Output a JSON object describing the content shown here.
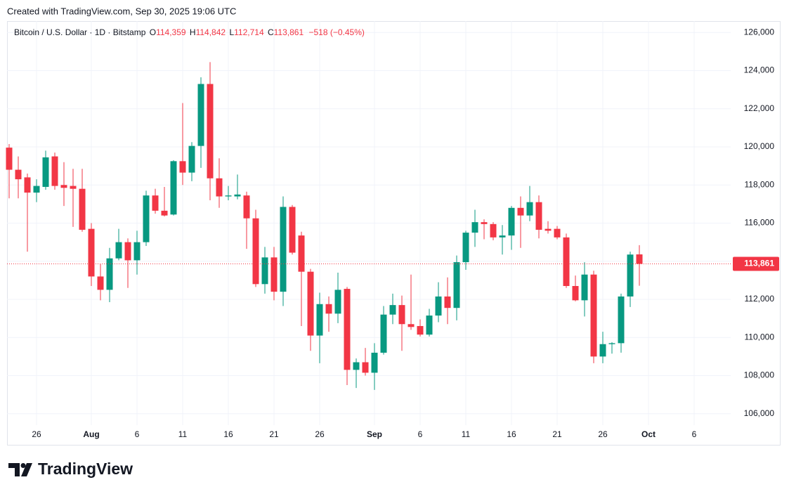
{
  "credit": "Created with TradingView.com, Sep 30, 2025 19:06 UTC",
  "header": {
    "symbol": "Bitcoin / U.S. Dollar · 1D · Bitstamp",
    "open_label": "O",
    "open": "114,359",
    "high_label": "H",
    "high": "114,842",
    "low_label": "L",
    "low": "112,714",
    "close_label": "C",
    "close": "113,861",
    "change": "−518 (−0.45%)"
  },
  "brand": "TradingView",
  "chart_data": {
    "type": "candlestick",
    "categories": [
      null,
      null,
      null,
      "26",
      null,
      null,
      null,
      null,
      null,
      "Aug",
      null,
      null,
      null,
      null,
      "6",
      null,
      null,
      null,
      null,
      "11",
      null,
      null,
      null,
      null,
      "16",
      null,
      null,
      null,
      null,
      "21",
      null,
      null,
      null,
      null,
      "26",
      null,
      null,
      null,
      null,
      null,
      "Sep",
      null,
      null,
      null,
      null,
      "6",
      null,
      null,
      null,
      null,
      "11",
      null,
      null,
      null,
      null,
      "16",
      null,
      null,
      null,
      null,
      "21",
      null,
      null,
      null,
      null,
      "26",
      null,
      null,
      null,
      null,
      "Oct",
      null,
      null,
      null,
      null,
      "6"
    ],
    "open": [
      119960,
      118800,
      118400,
      117600,
      117900,
      119500,
      118000,
      117950,
      117800,
      115700,
      113200,
      112500,
      114150,
      115000,
      114050,
      115000,
      117450,
      116650,
      116450,
      119250,
      118650,
      120050,
      123300,
      118350,
      117400,
      117400,
      117450,
      116250,
      112800,
      114200,
      112400,
      116850,
      115350,
      113450,
      110100,
      111750,
      111250,
      112550,
      108300,
      108700,
      108150,
      109200,
      111200,
      111700,
      110700,
      110600,
      110150,
      111150,
      112150,
      111550,
      113950,
      115500,
      116050,
      115950,
      115250,
      115350,
      116800,
      116400,
      117100,
      115700,
      115700,
      115250,
      112700,
      111950,
      113300,
      109000,
      109650,
      109700,
      112150,
      114359,
      null,
      null,
      null,
      null,
      null,
      null
    ],
    "high": [
      120150,
      119500,
      118600,
      118300,
      119800,
      119700,
      119200,
      118850,
      118850,
      116000,
      113850,
      114700,
      115700,
      115200,
      115600,
      117700,
      117800,
      117900,
      119300,
      122300,
      120250,
      123650,
      124450,
      119400,
      117950,
      118550,
      117650,
      116700,
      114750,
      114750,
      117400,
      116950,
      115550,
      113600,
      112350,
      112150,
      113400,
      112650,
      108900,
      109450,
      109700,
      111650,
      112300,
      112200,
      113300,
      110950,
      111500,
      112900,
      113150,
      114300,
      115600,
      116700,
      116200,
      116050,
      115900,
      116900,
      117400,
      117950,
      117450,
      116100,
      115850,
      115450,
      113250,
      113950,
      113500,
      110300,
      109750,
      112300,
      114500,
      114842,
      null,
      null,
      null,
      null,
      null,
      null
    ],
    "low": [
      117300,
      117300,
      114500,
      117100,
      117750,
      117750,
      116900,
      115800,
      115550,
      112700,
      111950,
      111850,
      114050,
      112600,
      113300,
      114800,
      116500,
      116350,
      116400,
      118000,
      118200,
      118900,
      117200,
      116800,
      117200,
      117250,
      114650,
      112650,
      112300,
      111950,
      111650,
      114350,
      110600,
      109300,
      108650,
      110300,
      110750,
      107500,
      107350,
      108000,
      107250,
      109100,
      110700,
      109300,
      110400,
      110050,
      110050,
      110800,
      110700,
      110900,
      113550,
      114750,
      115150,
      115100,
      114350,
      114600,
      114700,
      116100,
      115200,
      115450,
      115150,
      112600,
      111900,
      111100,
      108650,
      108650,
      109150,
      109200,
      111600,
      112714,
      null,
      null,
      null,
      null,
      null,
      null
    ],
    "close": [
      118800,
      118300,
      117600,
      117950,
      119450,
      117950,
      117850,
      117800,
      115650,
      113200,
      112500,
      114150,
      115000,
      114050,
      115000,
      117450,
      116650,
      116400,
      119250,
      118650,
      120050,
      123300,
      118350,
      117400,
      117450,
      117500,
      116250,
      112800,
      114200,
      112400,
      116850,
      114450,
      113450,
      110100,
      111750,
      111250,
      112500,
      108300,
      108700,
      108150,
      109200,
      111200,
      111700,
      110700,
      110550,
      110150,
      111150,
      112150,
      111550,
      113950,
      115500,
      116050,
      115950,
      115250,
      115350,
      116800,
      116400,
      117100,
      115650,
      115600,
      115250,
      112700,
      111950,
      113300,
      109000,
      109650,
      109700,
      112150,
      114350,
      113861,
      null,
      null,
      null,
      null,
      null,
      null
    ],
    "up_color": "#089981",
    "down_color": "#f23645",
    "ylim": [
      105400,
      126600
    ],
    "yticks": [
      {
        "value": 106000,
        "label": "106,000"
      },
      {
        "value": 108000,
        "label": "108,000"
      },
      {
        "value": 110000,
        "label": "110,000"
      },
      {
        "value": 112000,
        "label": "112,000"
      },
      {
        "value": 114000,
        "label": "114,000"
      },
      {
        "value": 116000,
        "label": "116,000"
      },
      {
        "value": 118000,
        "label": "118,000"
      },
      {
        "value": 120000,
        "label": "120,000"
      },
      {
        "value": 122000,
        "label": "122,000"
      },
      {
        "value": 124000,
        "label": "124,000"
      },
      {
        "value": 126000,
        "label": "126,000"
      }
    ],
    "last_price": {
      "value": 113861,
      "label": "113,861"
    },
    "grid": true
  }
}
